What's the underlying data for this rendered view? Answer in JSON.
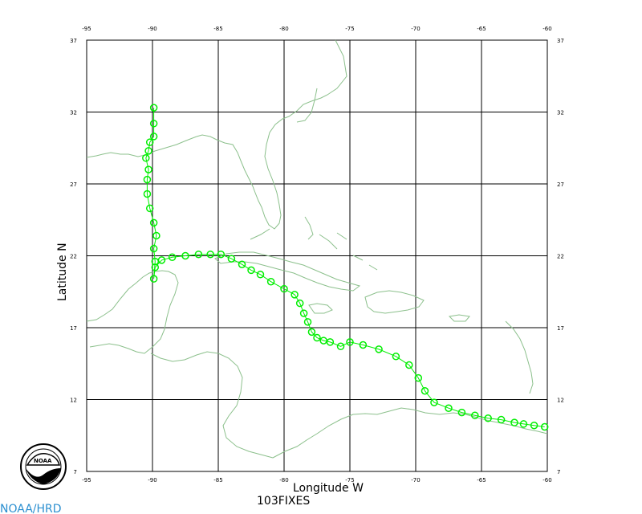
{
  "map": {
    "x_tick_labels": [
      "-95",
      "-90",
      "-85",
      "-80",
      "-75",
      "-70",
      "-65",
      "-60"
    ],
    "y_tick_labels": [
      "37",
      "32",
      "27",
      "22",
      "17",
      "12",
      "7"
    ],
    "x_axis_title": "Longitude  W",
    "y_axis_title": "Latitude  N",
    "fix_count_label": "103FIXES",
    "credit": "NOAA/HRD",
    "logo_text": "NOAA",
    "colors": {
      "coastline": "#8cc08c",
      "track": "#00ee00",
      "grid": "#000000",
      "credit": "#2b8fd0"
    },
    "track_points": [
      [
        -60.2,
        10.1
      ],
      [
        -61.0,
        10.2
      ],
      [
        -61.8,
        10.3
      ],
      [
        -62.5,
        10.4
      ],
      [
        -63.5,
        10.6
      ],
      [
        -64.5,
        10.7
      ],
      [
        -65.5,
        10.9
      ],
      [
        -66.5,
        11.1
      ],
      [
        -67.5,
        11.4
      ],
      [
        -68.6,
        11.8
      ],
      [
        -69.3,
        12.6
      ],
      [
        -69.8,
        13.5
      ],
      [
        -70.5,
        14.4
      ],
      [
        -71.5,
        15.0
      ],
      [
        -72.8,
        15.5
      ],
      [
        -74.0,
        15.8
      ],
      [
        -75.0,
        16.0
      ],
      [
        -75.7,
        15.7
      ],
      [
        -76.5,
        16.0
      ],
      [
        -77.0,
        16.1
      ],
      [
        -77.5,
        16.3
      ],
      [
        -77.9,
        16.7
      ],
      [
        -78.2,
        17.4
      ],
      [
        -78.5,
        18.0
      ],
      [
        -78.8,
        18.7
      ],
      [
        -79.2,
        19.3
      ],
      [
        -80.0,
        19.7
      ],
      [
        -81.0,
        20.2
      ],
      [
        -81.8,
        20.7
      ],
      [
        -82.5,
        21.0
      ],
      [
        -83.2,
        21.4
      ],
      [
        -84.0,
        21.8
      ],
      [
        -84.8,
        22.1
      ],
      [
        -85.6,
        22.1
      ],
      [
        -86.5,
        22.1
      ],
      [
        -87.5,
        22.0
      ],
      [
        -88.5,
        21.9
      ],
      [
        -89.3,
        21.7
      ],
      [
        -89.8,
        21.2
      ],
      [
        -89.9,
        20.4
      ],
      [
        -89.8,
        21.6
      ],
      [
        -89.9,
        22.5
      ],
      [
        -89.7,
        23.4
      ],
      [
        -89.9,
        24.3
      ],
      [
        -90.2,
        25.3
      ],
      [
        -90.4,
        26.3
      ],
      [
        -90.4,
        27.3
      ],
      [
        -90.3,
        28.0
      ],
      [
        -90.5,
        28.8
      ],
      [
        -90.3,
        29.3
      ],
      [
        -90.2,
        29.9
      ],
      [
        -89.9,
        30.3
      ],
      [
        -89.9,
        31.2
      ],
      [
        -89.9,
        32.3
      ]
    ]
  }
}
